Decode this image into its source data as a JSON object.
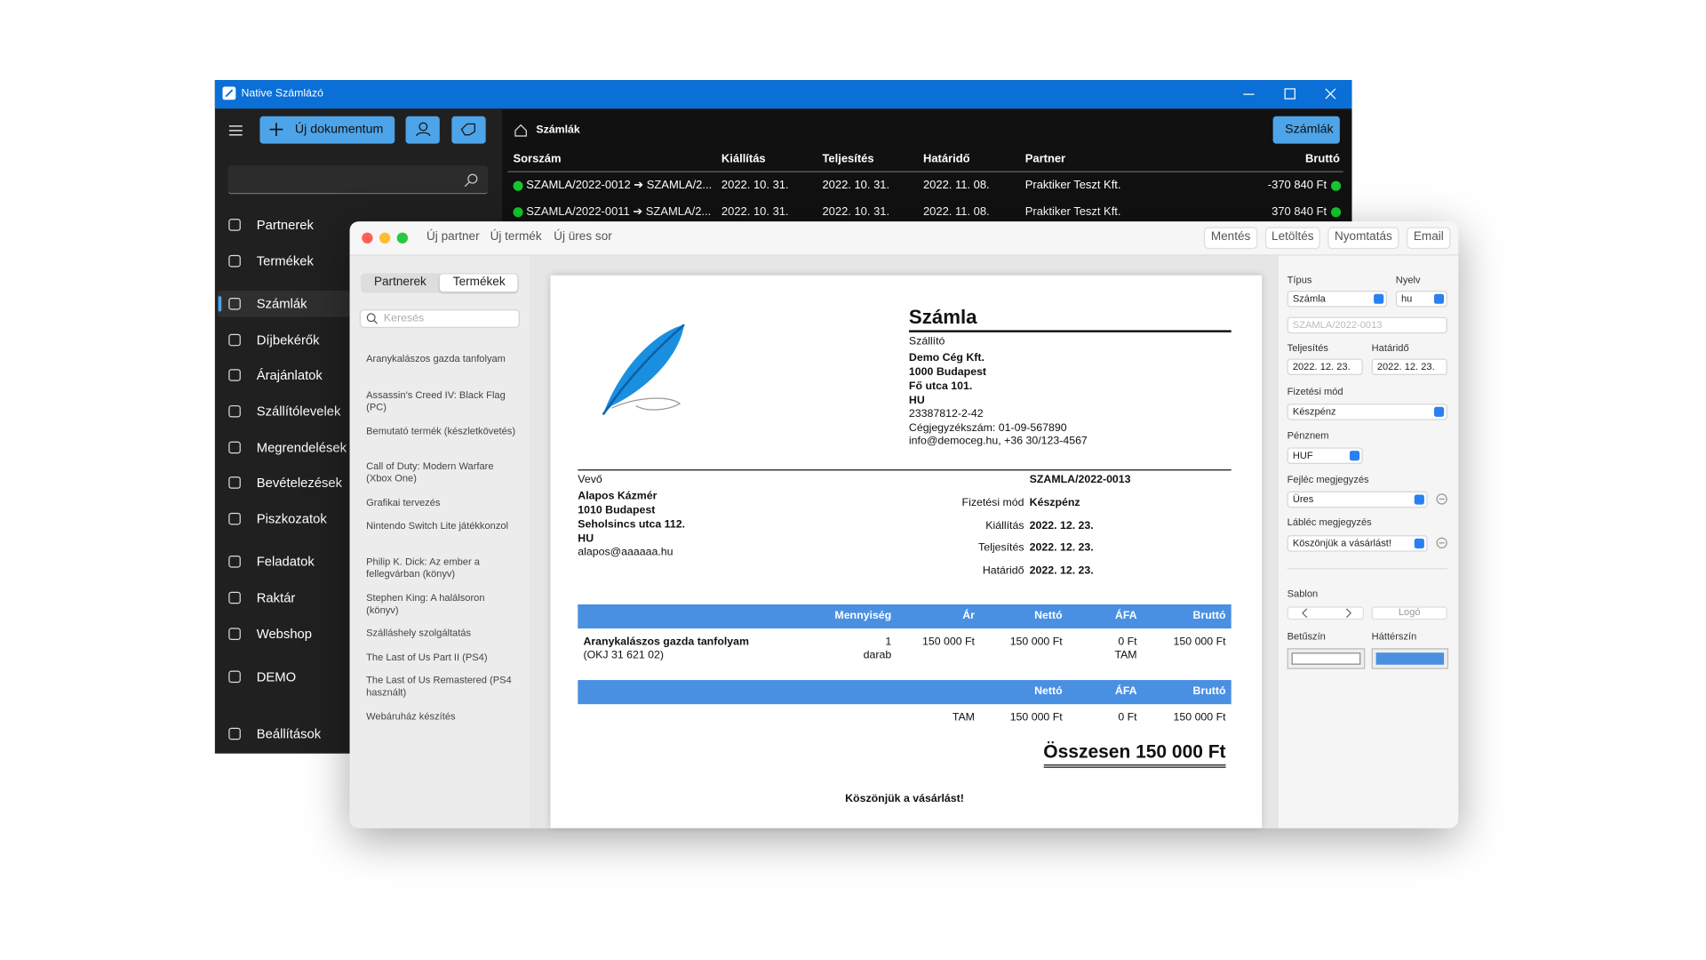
{
  "back_window": {
    "title": "Native Számlázó",
    "new_button": "Új dokumentum",
    "nav": [
      "Partnerek",
      "Termékek",
      "Számlák",
      "Díjbekérők",
      "Árajánlatok",
      "Szállítólevelek",
      "Megrendelések",
      "Bevételezések",
      "Piszkozatok",
      "Feladatok",
      "Raktár",
      "Webshop",
      "DEMO",
      "Beállítások"
    ],
    "breadcrumb": "Számlák",
    "view_button": "Számlák",
    "table": {
      "headers": [
        "Sorszám",
        "Kiállítás",
        "Teljesítés",
        "Határidő",
        "Partner",
        "Bruttó"
      ],
      "rows": [
        [
          "SZAMLA/2022-0012 ➔ SZAMLA/2...",
          "2022. 10. 31.",
          "2022. 10. 31.",
          "2022. 11. 08.",
          "Praktiker Teszt Kft.",
          "-370 840 Ft"
        ],
        [
          "SZAMLA/2022-0011 ➔ SZAMLA/2...",
          "2022. 10. 31.",
          "2022. 10. 31.",
          "2022. 11. 08.",
          "Praktiker Teszt Kft.",
          "370 840 Ft"
        ]
      ]
    }
  },
  "front_window": {
    "toolbar_left": [
      "Új partner",
      "Új termék",
      "Új üres sor"
    ],
    "toolbar_right": [
      "Mentés",
      "Letöltés",
      "Nyomtatás",
      "Email"
    ],
    "tabs": [
      "Partnerek",
      "Termékek"
    ],
    "search_placeholder": "Keresés",
    "products": [
      "Aranykalászos gazda tanfolyam",
      "Assassin's Creed IV: Black Flag (PC)",
      "Bemutató termék (készletkövetés)",
      "Call of Duty: Modern Warfare (Xbox One)",
      "Grafikai tervezés",
      "Nintendo Switch Lite játékkonzol",
      "Philip K. Dick: Az ember a fellegvárban (könyv)",
      "Stephen King: A halálsoron (könyv)",
      "Szálláshely szolgáltatás",
      "The Last of Us Part II (PS4)",
      "The Last of Us Remastered (PS4 használt)",
      "Webáruház készítés"
    ],
    "invoice": {
      "title": "Számla",
      "supplier_label": "Szállító",
      "supplier_lines": [
        "Demo Cég Kft.",
        "1000 Budapest",
        "Fő utca 101.",
        "HU"
      ],
      "supplier_details": [
        "23387812-2-42",
        "Cégjegyzékszám: 01-09-567890",
        "info@democeg.hu, +36 30/123-4567"
      ],
      "buyer_label": "Vevő",
      "buyer_lines": [
        "Alapos Kázmér",
        "1010 Budapest",
        "Seholsincs utca 112.",
        "HU"
      ],
      "buyer_email": "alapos@aaaaaa.hu",
      "number": "SZAMLA/2022-0013",
      "meta": [
        [
          "Fizetési mód",
          "Készpénz"
        ],
        [
          "Kiállítás",
          "2022. 12. 23."
        ],
        [
          "Teljesítés",
          "2022. 12. 23."
        ],
        [
          "Határidő",
          "2022. 12. 23."
        ]
      ],
      "item_headers": [
        "Mennyiség",
        "Ár",
        "Nettó",
        "ÁFA",
        "Bruttó"
      ],
      "item": {
        "name": "Aranykalászos gazda tanfolyam",
        "code": "(OKJ 31 621 02)",
        "quantity": "1",
        "unit": "darab",
        "price": "150 000 Ft",
        "net": "150 000 Ft",
        "vat": "0 Ft",
        "vat_type": "TAM",
        "gross": "150 000 Ft"
      },
      "summary_headers": [
        "Nettó",
        "ÁFA",
        "Bruttó"
      ],
      "summary_row": [
        "TAM",
        "150 000 Ft",
        "0 Ft",
        "150 000 Ft"
      ],
      "total": "Összesen 150 000 Ft",
      "footer_note": "Köszönjük a vásárlást!"
    },
    "settings": {
      "type_label": "Típus",
      "type": "Számla",
      "language_label": "Nyelv",
      "language": "hu",
      "number_placeholder": "SZAMLA/2022-0013",
      "completion_label": "Teljesítés",
      "completion": "2022. 12. 23.",
      "due_label": "Határidő",
      "due": "2022. 12. 23.",
      "payment_label": "Fizetési mód",
      "payment": "Készpénz",
      "currency_label": "Pénznem",
      "currency": "HUF",
      "header_note_label": "Fejléc megjegyzés",
      "header_note": "Üres",
      "footer_note_label": "Lábléc megjegyzés",
      "footer_note": "Köszönjük a vásárlást!",
      "template_label": "Sablon",
      "logo_button": "Logó",
      "font_color_label": "Betűszín",
      "background_color_label": "Háttérszín"
    }
  }
}
